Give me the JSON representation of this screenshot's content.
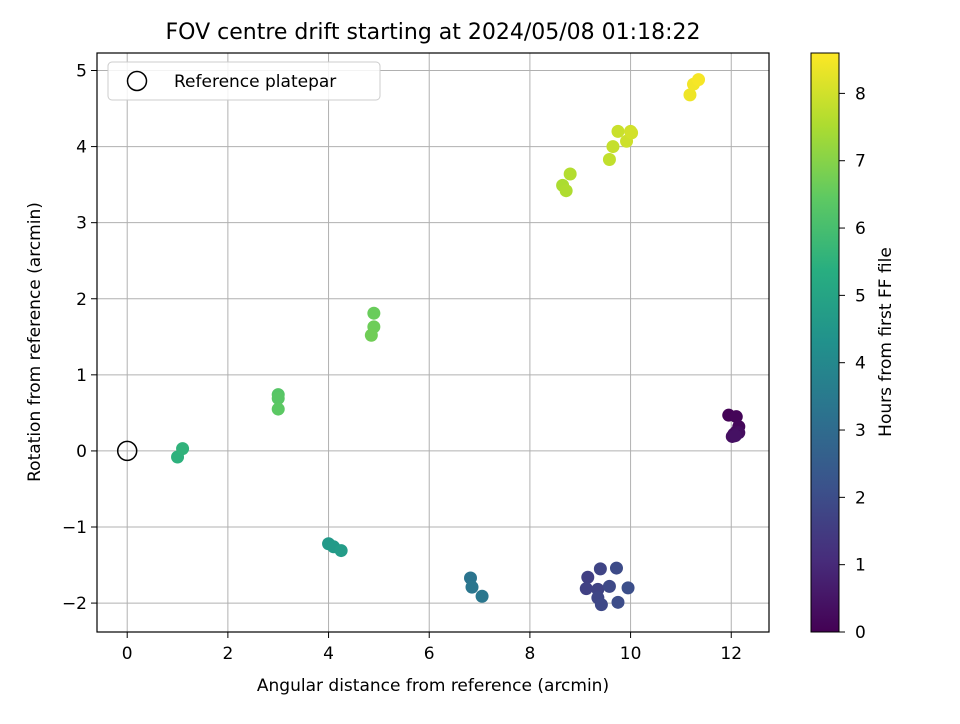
{
  "chart_data": {
    "type": "scatter",
    "title": "FOV centre drift starting at 2024/05/08 01:18:22",
    "xlabel": "Angular distance from reference (arcmin)",
    "ylabel": "Rotation from reference (arcmin)",
    "xlim": [
      -0.6,
      12.75
    ],
    "ylim": [
      -2.38,
      5.23
    ],
    "xticks": [
      0,
      2,
      4,
      6,
      8,
      10,
      12
    ],
    "yticks": [
      -2,
      -1,
      0,
      1,
      2,
      3,
      4,
      5
    ],
    "grid": true,
    "legend": {
      "placement": "top-left",
      "entries": [
        "Reference platepar"
      ]
    },
    "reference_point": {
      "x": 0,
      "y": 0,
      "label": "Reference platepar"
    },
    "colorbar": {
      "label": "Hours from first FF file",
      "colormap": "viridis",
      "range": [
        0,
        8.6
      ],
      "ticks": [
        0,
        1,
        2,
        3,
        4,
        5,
        6,
        7,
        8
      ]
    },
    "points": [
      {
        "x": 11.95,
        "y": 0.47,
        "h": 0.05
      },
      {
        "x": 12.1,
        "y": 0.45,
        "h": 0.1
      },
      {
        "x": 12.15,
        "y": 0.32,
        "h": 0.15
      },
      {
        "x": 12.1,
        "y": 0.25,
        "h": 0.2
      },
      {
        "x": 12.05,
        "y": 0.22,
        "h": 0.25
      },
      {
        "x": 12.15,
        "y": 0.24,
        "h": 0.3
      },
      {
        "x": 12.02,
        "y": 0.19,
        "h": 0.35
      },
      {
        "x": 12.08,
        "y": 0.2,
        "h": 0.4
      },
      {
        "x": 9.15,
        "y": -1.66,
        "h": 1.6
      },
      {
        "x": 9.12,
        "y": -1.81,
        "h": 1.65
      },
      {
        "x": 9.35,
        "y": -1.82,
        "h": 1.7
      },
      {
        "x": 9.4,
        "y": -1.55,
        "h": 1.75
      },
      {
        "x": 9.35,
        "y": -1.93,
        "h": 1.8
      },
      {
        "x": 9.42,
        "y": -2.02,
        "h": 1.85
      },
      {
        "x": 9.58,
        "y": -1.78,
        "h": 1.9
      },
      {
        "x": 9.72,
        "y": -1.54,
        "h": 1.95
      },
      {
        "x": 9.75,
        "y": -1.99,
        "h": 2.0
      },
      {
        "x": 9.95,
        "y": -1.8,
        "h": 2.05
      },
      {
        "x": 6.82,
        "y": -1.67,
        "h": 3.3
      },
      {
        "x": 6.85,
        "y": -1.79,
        "h": 3.35
      },
      {
        "x": 7.05,
        "y": -1.91,
        "h": 3.4
      },
      {
        "x": 4.0,
        "y": -1.22,
        "h": 4.6
      },
      {
        "x": 4.1,
        "y": -1.26,
        "h": 4.65
      },
      {
        "x": 4.25,
        "y": -1.31,
        "h": 4.7
      },
      {
        "x": 1.0,
        "y": -0.08,
        "h": 5.5
      },
      {
        "x": 1.1,
        "y": 0.03,
        "h": 5.55
      },
      {
        "x": 3.0,
        "y": 0.74,
        "h": 6.3
      },
      {
        "x": 3.0,
        "y": 0.69,
        "h": 6.35
      },
      {
        "x": 3.0,
        "y": 0.55,
        "h": 6.4
      },
      {
        "x": 4.9,
        "y": 1.81,
        "h": 6.6
      },
      {
        "x": 4.9,
        "y": 1.63,
        "h": 6.65
      },
      {
        "x": 4.85,
        "y": 1.52,
        "h": 6.7
      },
      {
        "x": 8.65,
        "y": 3.49,
        "h": 7.5
      },
      {
        "x": 8.72,
        "y": 3.42,
        "h": 7.55
      },
      {
        "x": 8.8,
        "y": 3.64,
        "h": 7.6
      },
      {
        "x": 9.58,
        "y": 3.83,
        "h": 7.8
      },
      {
        "x": 9.65,
        "y": 4.0,
        "h": 7.85
      },
      {
        "x": 9.75,
        "y": 4.2,
        "h": 7.9
      },
      {
        "x": 9.92,
        "y": 4.07,
        "h": 7.95
      },
      {
        "x": 10.0,
        "y": 4.2,
        "h": 8.0
      },
      {
        "x": 10.02,
        "y": 4.18,
        "h": 8.02
      },
      {
        "x": 11.18,
        "y": 4.68,
        "h": 8.4
      },
      {
        "x": 11.25,
        "y": 4.82,
        "h": 8.45
      },
      {
        "x": 11.35,
        "y": 4.88,
        "h": 8.5
      }
    ]
  }
}
